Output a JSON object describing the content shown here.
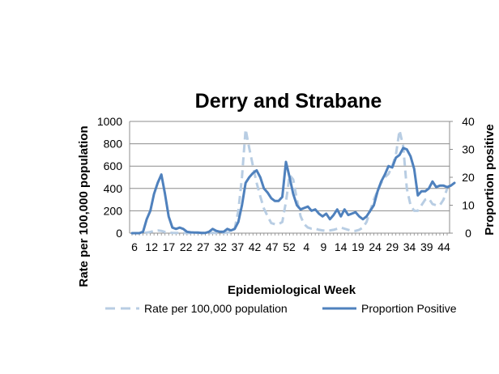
{
  "chart_data": {
    "type": "line",
    "title": "Derry and Strabane",
    "xlabel": "Epidemiological Week",
    "ylabel": "Rate per 100,000 population",
    "y2label": "Proportion positive",
    "ylim": [
      0,
      1000
    ],
    "y2lim": [
      0,
      40
    ],
    "yticks": [
      "0",
      "200",
      "400",
      "600",
      "800",
      "1000"
    ],
    "y2ticks": [
      "0",
      "10",
      "20",
      "30",
      "40"
    ],
    "xticks": [
      "6",
      "12",
      "17",
      "22",
      "27",
      "32",
      "37",
      "42",
      "47",
      "52",
      "4",
      "9",
      "14",
      "19",
      "24",
      "29",
      "34",
      "39",
      "44"
    ],
    "grid": true,
    "legend_position": "bottom",
    "series": [
      {
        "name": "Rate per 100,000 population",
        "axis": "left",
        "style": "dashed",
        "color": "#b8cde3",
        "values": [
          0,
          0,
          0,
          0,
          5,
          10,
          20,
          25,
          20,
          10,
          5,
          3,
          2,
          2,
          1,
          1,
          1,
          1,
          2,
          3,
          2,
          2,
          3,
          2,
          2,
          3,
          5,
          10,
          40,
          200,
          500,
          930,
          760,
          600,
          450,
          330,
          220,
          150,
          90,
          80,
          80,
          100,
          280,
          520,
          480,
          300,
          150,
          80,
          50,
          40,
          40,
          30,
          25,
          20,
          25,
          30,
          40,
          50,
          40,
          30,
          20,
          20,
          30,
          50,
          100,
          200,
          300,
          380,
          450,
          500,
          530,
          600,
          700,
          920,
          780,
          400,
          250,
          200,
          200,
          250,
          300,
          310,
          260,
          250,
          250,
          300,
          400
        ]
      },
      {
        "name": "Proportion Positive",
        "axis": "right",
        "style": "solid",
        "color": "#4f81bd",
        "values": [
          0,
          0,
          0,
          0.5,
          5,
          8,
          14,
          18,
          21,
          14,
          6,
          2,
          1.5,
          2,
          1.5,
          0.5,
          0.3,
          0.2,
          0.2,
          0.1,
          0.1,
          0.5,
          1.5,
          0.8,
          0.5,
          0.5,
          1.5,
          1,
          1.5,
          4,
          10,
          18,
          20,
          21.5,
          22.5,
          20,
          16,
          14.5,
          12.5,
          11.5,
          11.5,
          13,
          25.5,
          20,
          14,
          10,
          8.5,
          9,
          9.5,
          8,
          8.5,
          7,
          6,
          7,
          5,
          6.5,
          8.5,
          6,
          8.5,
          6.5,
          7,
          7.5,
          6,
          5,
          6,
          8,
          10,
          15,
          18.5,
          21,
          24,
          23.5,
          27,
          28,
          30.5,
          30,
          27.5,
          23,
          13.5,
          15,
          15,
          16,
          18.5,
          16.5,
          17,
          17,
          16.5,
          17,
          18
        ]
      }
    ]
  }
}
